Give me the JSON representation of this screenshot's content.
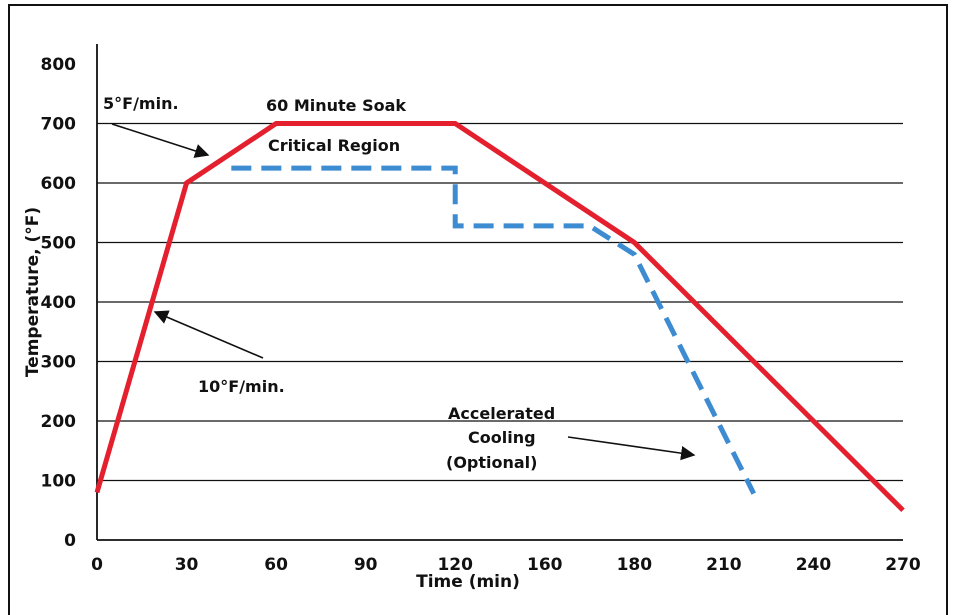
{
  "chart_data": {
    "type": "line",
    "xlabel": "Time (min)",
    "ylabel": "Temperature, (°F)",
    "x_tick_labels": [
      "0",
      "30",
      "60",
      "90",
      "120",
      "160",
      "180",
      "210",
      "240",
      "270"
    ],
    "y_tick_labels": [
      "0",
      "100",
      "200",
      "300",
      "400",
      "500",
      "600",
      "700",
      "800"
    ],
    "ylim": [
      0,
      800
    ],
    "grid": "horizontal",
    "series": [
      {
        "style": "solid",
        "color": "#e4202e",
        "points": [
          [
            0,
            80
          ],
          [
            30,
            600
          ],
          [
            60,
            700
          ],
          [
            120,
            700
          ],
          [
            180,
            500
          ],
          [
            240,
            200
          ],
          [
            270,
            50
          ]
        ]
      },
      {
        "style": "dashed",
        "color": "#3d8bd0",
        "points": [
          [
            45,
            625
          ],
          [
            120,
            625
          ],
          [
            120,
            528
          ],
          [
            165,
            528
          ],
          [
            180,
            480
          ],
          [
            220,
            78
          ]
        ]
      }
    ],
    "annotations": [
      {
        "id": "soak",
        "text": "60 Minute Soak"
      },
      {
        "id": "critical",
        "text": "Critical Region"
      },
      {
        "id": "rate5",
        "text": "5°F/min."
      },
      {
        "id": "rate10",
        "text": "10°F/min."
      },
      {
        "id": "accel1",
        "text": "Accelerated"
      },
      {
        "id": "accel2",
        "text": "Cooling"
      },
      {
        "id": "accel3",
        "text": "(Optional)"
      }
    ]
  }
}
